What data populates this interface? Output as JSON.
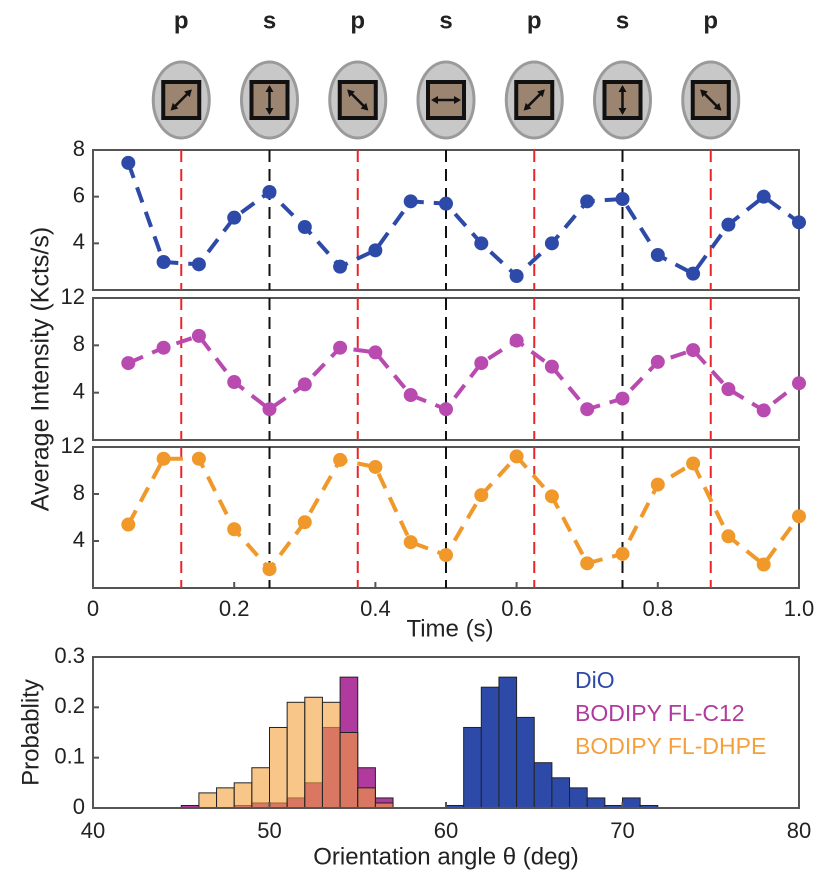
{
  "polarization_labels": [
    "p",
    "s",
    "p",
    "s",
    "p",
    "s",
    "p"
  ],
  "chart_data": [
    {
      "type": "line",
      "color": "#2e4aa8",
      "x": [
        0.05,
        0.1,
        0.15,
        0.2,
        0.25,
        0.3,
        0.35,
        0.4,
        0.45,
        0.5,
        0.55,
        0.6,
        0.65,
        0.7,
        0.75,
        0.8,
        0.85,
        0.9,
        0.95,
        1
      ],
      "values": [
        7.45,
        3.2,
        3.1,
        5.1,
        6.2,
        4.7,
        3.0,
        3.7,
        5.8,
        5.7,
        4.0,
        2.6,
        4.0,
        5.8,
        5.9,
        3.5,
        2.7,
        4.8,
        6.0,
        4.9
      ],
      "xlim": [
        0,
        1
      ],
      "ylim": [
        2,
        8
      ],
      "yticks": [
        4,
        6,
        8
      ],
      "vlines": [
        {
          "x": 0.125,
          "color": "#e8262a"
        },
        {
          "x": 0.25,
          "color": "#111111"
        },
        {
          "x": 0.375,
          "color": "#e8262a"
        },
        {
          "x": 0.5,
          "color": "#111111"
        },
        {
          "x": 0.625,
          "color": "#e8262a"
        },
        {
          "x": 0.75,
          "color": "#111111"
        },
        {
          "x": 0.875,
          "color": "#e8262a"
        }
      ]
    },
    {
      "type": "line",
      "color": "#b84ab0",
      "ylabel": "Average Intensity (Kcts/s)",
      "x": [
        0.05,
        0.1,
        0.15,
        0.2,
        0.25,
        0.3,
        0.35,
        0.4,
        0.45,
        0.5,
        0.55,
        0.6,
        0.65,
        0.7,
        0.75,
        0.8,
        0.85,
        0.9,
        0.95,
        1
      ],
      "values": [
        6.5,
        7.8,
        8.8,
        4.9,
        2.6,
        4.7,
        7.8,
        7.4,
        3.8,
        2.6,
        6.5,
        8.4,
        6.2,
        2.6,
        3.5,
        6.6,
        7.6,
        4.3,
        2.5,
        4.8
      ],
      "xlim": [
        0,
        1
      ],
      "ylim": [
        0,
        12
      ],
      "yticks": [
        4,
        8,
        12
      ],
      "vlines": [
        {
          "x": 0.125,
          "color": "#e8262a"
        },
        {
          "x": 0.25,
          "color": "#111111"
        },
        {
          "x": 0.375,
          "color": "#e8262a"
        },
        {
          "x": 0.5,
          "color": "#111111"
        },
        {
          "x": 0.625,
          "color": "#e8262a"
        },
        {
          "x": 0.75,
          "color": "#111111"
        },
        {
          "x": 0.875,
          "color": "#e8262a"
        }
      ]
    },
    {
      "type": "line",
      "color": "#f0982a",
      "xlabel": "Time (s)",
      "x": [
        0.05,
        0.1,
        0.15,
        0.2,
        0.25,
        0.3,
        0.35,
        0.4,
        0.45,
        0.5,
        0.55,
        0.6,
        0.65,
        0.7,
        0.75,
        0.8,
        0.85,
        0.9,
        0.95,
        1
      ],
      "values": [
        5.4,
        11.0,
        11.0,
        5.0,
        1.6,
        5.6,
        10.9,
        10.3,
        3.9,
        2.8,
        7.9,
        11.2,
        7.8,
        2.1,
        2.9,
        8.8,
        10.6,
        4.4,
        2.0,
        6.1
      ],
      "xlim": [
        0,
        1
      ],
      "ylim": [
        0,
        12
      ],
      "yticks": [
        4,
        8,
        12
      ],
      "xticks": [
        0,
        0.2,
        0.4,
        0.6,
        0.8,
        {
          "value": 1,
          "label": "1.0"
        }
      ],
      "vlines": [
        {
          "x": 0.125,
          "color": "#e8262a"
        },
        {
          "x": 0.25,
          "color": "#111111"
        },
        {
          "x": 0.375,
          "color": "#e8262a"
        },
        {
          "x": 0.5,
          "color": "#111111"
        },
        {
          "x": 0.625,
          "color": "#e8262a"
        },
        {
          "x": 0.75,
          "color": "#111111"
        },
        {
          "x": 0.875,
          "color": "#e8262a"
        }
      ]
    },
    {
      "type": "histogram",
      "xlabel": "Orientation angle θ (deg)",
      "ylabel": "Probablity",
      "bins": [
        45,
        46,
        47,
        48,
        49,
        50,
        51,
        52,
        53,
        54,
        55,
        56,
        57,
        58,
        59,
        60,
        61,
        62,
        63,
        64,
        65,
        66,
        67,
        68,
        69,
        70,
        71,
        72
      ],
      "series": [
        {
          "name": "DiO",
          "color": "#2e4aa8",
          "values": [
            0,
            0,
            0,
            0,
            0,
            0,
            0,
            0,
            0,
            0,
            0,
            0,
            0,
            0,
            0,
            0.005,
            0.16,
            0.24,
            0.26,
            0.18,
            0.09,
            0.06,
            0.04,
            0.02,
            0.005,
            0.02,
            0.005
          ]
        },
        {
          "name": "BODIPY FL-C12",
          "color": "#b03a9e",
          "values": [
            0.005,
            0,
            0,
            0.005,
            0.01,
            0.01,
            0.02,
            0.05,
            0.16,
            0.26,
            0.08,
            0.02,
            0,
            0,
            0,
            0,
            0,
            0,
            0,
            0,
            0,
            0,
            0,
            0,
            0,
            0,
            0
          ]
        },
        {
          "name": "BODIPY FL-DHPE",
          "color": "#f5a03c",
          "values": [
            0,
            0.03,
            0.04,
            0.05,
            0.08,
            0.16,
            0.21,
            0.22,
            0.21,
            0.15,
            0.04,
            0.01,
            0,
            0,
            0,
            0,
            0,
            0,
            0,
            0,
            0,
            0,
            0,
            0,
            0,
            0,
            0
          ]
        }
      ],
      "xlim": [
        40,
        80
      ],
      "xticks": [
        40,
        50,
        60,
        70,
        80
      ],
      "ylim": [
        0,
        0.3
      ],
      "yticks": [
        0,
        0.1,
        0.2,
        0.3
      ]
    }
  ]
}
